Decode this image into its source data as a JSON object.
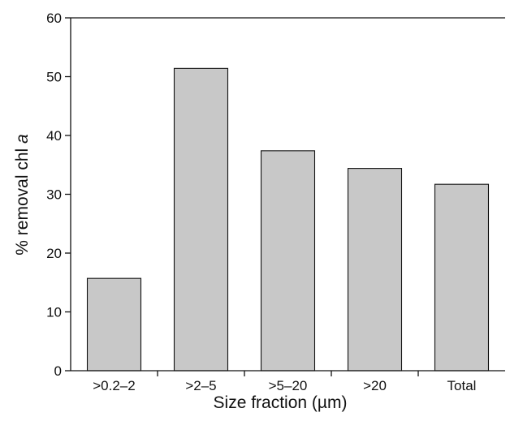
{
  "chart_data": {
    "type": "bar",
    "categories": [
      ">0.2–2",
      ">2–5",
      ">5–20",
      ">20",
      "Total"
    ],
    "values": [
      15.7,
      51.4,
      37.4,
      34.4,
      31.7
    ],
    "xlabel": "Size fraction (µm)",
    "ylabel_prefix": "% removal chl ",
    "ylabel_italic": "a",
    "ylim": [
      0,
      60
    ],
    "yticks": [
      0,
      10,
      20,
      30,
      40,
      50,
      60
    ],
    "grid": false,
    "legend": "none",
    "colors": {
      "bar_fill": "#c8c8c8",
      "bar_stroke": "#111111",
      "axis": "#111111"
    }
  }
}
